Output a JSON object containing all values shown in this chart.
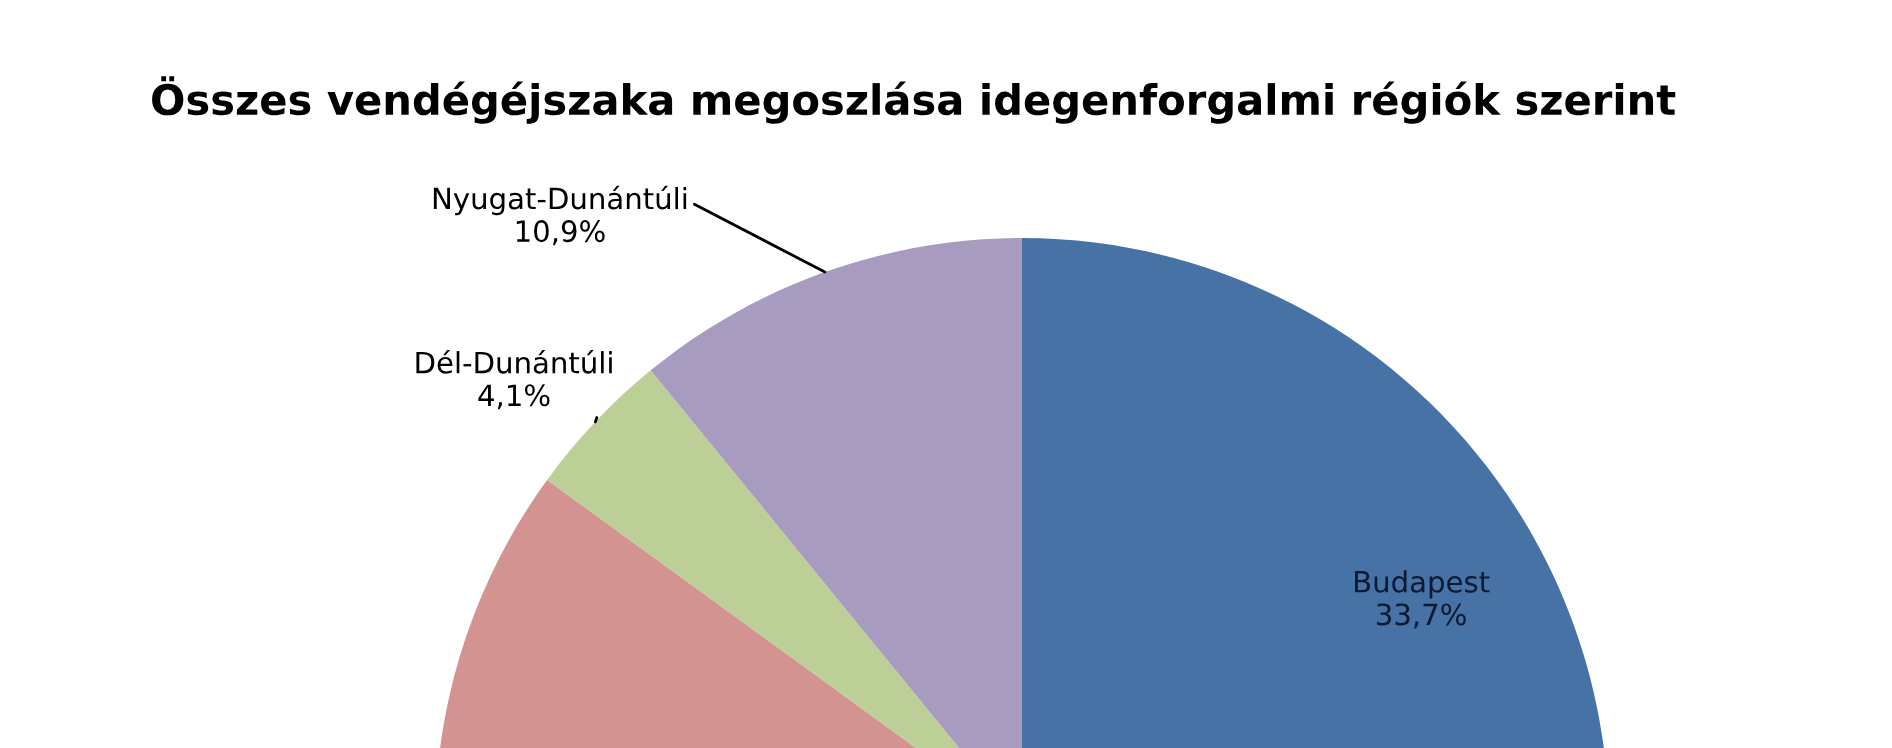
{
  "chart_data": {
    "type": "pie",
    "title": "Összes vendégéjszaka megoszlása idegenforgalmi régiók szerint",
    "categories": [
      "Budapest",
      null,
      "Dél-Dunántúli",
      "Nyugat-Dunántúli"
    ],
    "values": [
      33.7,
      13.0,
      4.1,
      10.9
    ],
    "colors": [
      "#4672a6",
      "#d39391",
      "#bccf97",
      "#a79bbf"
    ],
    "value_labels": [
      "33,7%",
      null,
      "4,1%",
      "10,9%"
    ]
  }
}
